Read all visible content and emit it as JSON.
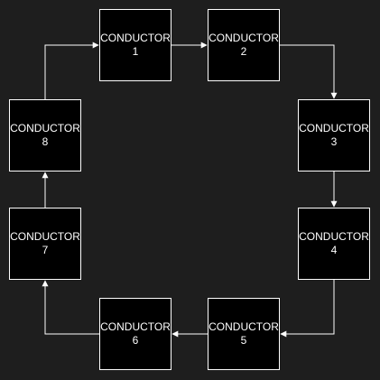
{
  "diagram": {
    "background": "#1e1e1e",
    "node_fill": "#000000",
    "stroke_color": "#ffffff",
    "text_color": "#ffffff",
    "nodes": [
      {
        "id": "c1",
        "title": "CONDUCTOR",
        "number": "1"
      },
      {
        "id": "c2",
        "title": "CONDUCTOR",
        "number": "2"
      },
      {
        "id": "c3",
        "title": "CONDUCTOR",
        "number": "3"
      },
      {
        "id": "c4",
        "title": "CONDUCTOR",
        "number": "4"
      },
      {
        "id": "c5",
        "title": "CONDUCTOR",
        "number": "5"
      },
      {
        "id": "c6",
        "title": "CONDUCTOR",
        "number": "6"
      },
      {
        "id": "c7",
        "title": "CONDUCTOR",
        "number": "7"
      },
      {
        "id": "c8",
        "title": "CONDUCTOR",
        "number": "8"
      }
    ],
    "edges": [
      {
        "from": "c1",
        "to": "c2"
      },
      {
        "from": "c2",
        "to": "c3"
      },
      {
        "from": "c3",
        "to": "c4"
      },
      {
        "from": "c4",
        "to": "c5"
      },
      {
        "from": "c5",
        "to": "c6"
      },
      {
        "from": "c6",
        "to": "c7"
      },
      {
        "from": "c7",
        "to": "c8"
      },
      {
        "from": "c8",
        "to": "c1"
      }
    ]
  }
}
